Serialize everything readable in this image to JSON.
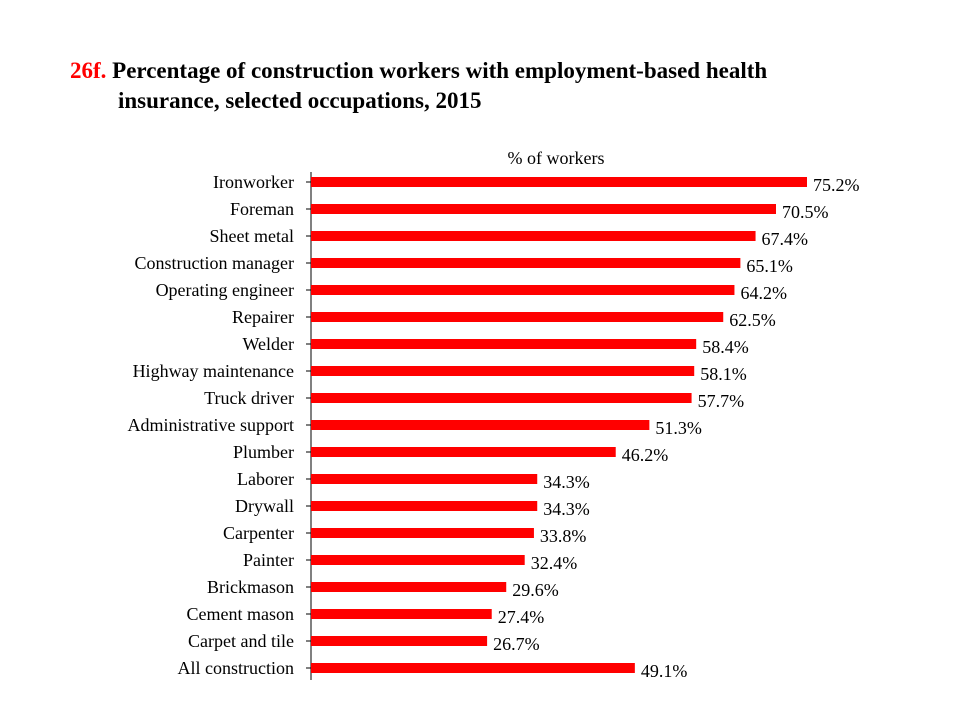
{
  "title": {
    "number": "26f.",
    "line1": "Percentage of construction workers with employment-based health",
    "line2": "insurance, selected occupations, 2015"
  },
  "colors": {
    "bar": "#ff0000",
    "axis": "#000000",
    "title_number": "#ff0000"
  },
  "chart_data": {
    "type": "bar",
    "orientation": "horizontal",
    "title": "Percentage of construction workers with employment-based health insurance, selected occupations, 2015",
    "xlabel": "% of workers",
    "ylabel": "",
    "xlim": [
      0,
      100
    ],
    "grid": false,
    "legend": "none",
    "categories": [
      "Ironworker",
      "Foreman",
      "Sheet metal",
      "Construction manager",
      "Operating engineer",
      "Repairer",
      "Welder",
      "Highway maintenance",
      "Truck driver",
      "Administrative support",
      "Plumber",
      "Laborer",
      "Drywall",
      "Carpenter",
      "Painter",
      "Brickmason",
      "Cement mason",
      "Carpet and tile",
      "All construction"
    ],
    "values": [
      75.2,
      70.5,
      67.4,
      65.1,
      64.2,
      62.5,
      58.4,
      58.1,
      57.7,
      51.3,
      46.2,
      34.3,
      34.3,
      33.8,
      32.4,
      29.6,
      27.4,
      26.7,
      49.1
    ],
    "value_labels": [
      "75.2%",
      "70.5%",
      "67.4%",
      "65.1%",
      "64.2%",
      "62.5%",
      "58.4%",
      "58.1%",
      "57.7%",
      "51.3%",
      "46.2%",
      "34.3%",
      "34.3%",
      "33.8%",
      "32.4%",
      "29.6%",
      "27.4%",
      "26.7%",
      "49.1%"
    ]
  }
}
